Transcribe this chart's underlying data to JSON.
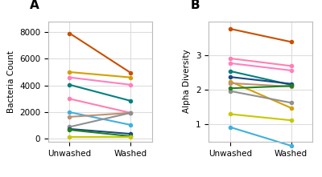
{
  "panel_A": {
    "title": "A",
    "ylabel": "Bacteria Count",
    "ylim": [
      -200,
      8800
    ],
    "yticks": [
      0,
      2000,
      4000,
      6000,
      8000
    ],
    "lines": [
      {
        "color": "#c85000",
        "unwashed": 7900,
        "washed": 4950
      },
      {
        "color": "#d4a000",
        "unwashed": 5000,
        "washed": 4600
      },
      {
        "color": "#ff80c0",
        "unwashed": 4600,
        "washed": 4050
      },
      {
        "color": "#008080",
        "unwashed": 4050,
        "washed": 2850
      },
      {
        "color": "#ff80b0",
        "unwashed": 3000,
        "washed": 1950
      },
      {
        "color": "#40b0e0",
        "unwashed": 2000,
        "washed": 1050
      },
      {
        "color": "#c09070",
        "unwashed": 1650,
        "washed": 1950
      },
      {
        "color": "#909090",
        "unwashed": 900,
        "washed": 1950
      },
      {
        "color": "#1a4a80",
        "unwashed": 750,
        "washed": 380
      },
      {
        "color": "#208020",
        "unwashed": 680,
        "washed": 200
      },
      {
        "color": "#c8c800",
        "unwashed": 150,
        "washed": 150
      }
    ]
  },
  "panel_B": {
    "title": "B",
    "ylabel": "Alpha Diversity",
    "ylim": [
      0.5,
      4.0
    ],
    "yticks": [
      1,
      2,
      3
    ],
    "lines": [
      {
        "color": "#c85000",
        "unwashed": 3.78,
        "washed": 3.4
      },
      {
        "color": "#ff80b0",
        "unwashed": 2.92,
        "washed": 2.7
      },
      {
        "color": "#ff80c0",
        "unwashed": 2.78,
        "washed": 2.57
      },
      {
        "color": "#008080",
        "unwashed": 2.55,
        "washed": 2.15
      },
      {
        "color": "#1a4a80",
        "unwashed": 2.38,
        "washed": 2.18
      },
      {
        "color": "#d4a000",
        "unwashed": 2.25,
        "washed": 1.48
      },
      {
        "color": "#c09070",
        "unwashed": 2.2,
        "washed": 2.1
      },
      {
        "color": "#909090",
        "unwashed": 1.97,
        "washed": 1.63
      },
      {
        "color": "#208020",
        "unwashed": 2.05,
        "washed": 2.12
      },
      {
        "color": "#c8c800",
        "unwashed": 1.3,
        "washed": 1.12
      },
      {
        "color": "#40b0e0",
        "unwashed": 0.92,
        "washed": 0.38
      }
    ]
  },
  "x_labels": [
    "Unwashed",
    "Washed"
  ],
  "background_color": "#ffffff",
  "axes_bg_color": "#ffffff",
  "grid_color": "#dddddd",
  "marker_size": 4,
  "line_width": 1.5
}
